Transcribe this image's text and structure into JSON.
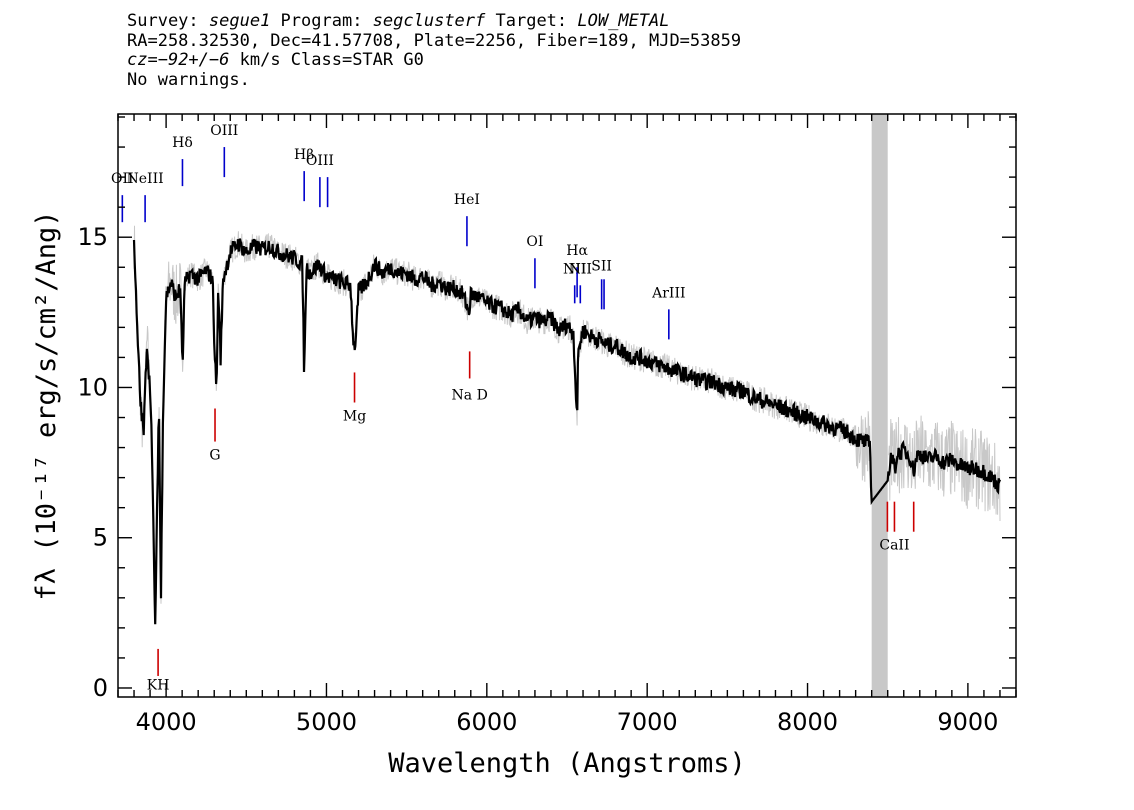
{
  "header": {
    "survey_label": "Survey: ",
    "survey": "segue1",
    "program_label": " Program: ",
    "program": "segclusterf",
    "target_label": " Target: ",
    "target": "LOW_METAL",
    "line2": "RA=258.32530, Dec=41.57708, Plate=2256, Fiber=189, MJD=53859",
    "cz_label": "cz",
    "cz_value": "=−92+/−6",
    "cz_rest": " km/s Class=STAR G0",
    "line4": "No warnings."
  },
  "chart_data": {
    "type": "line",
    "xlabel": "Wavelength (Angstroms)",
    "ylabel": "fλ (10⁻¹⁷ erg/s/cm²/Ang)",
    "xlim": [
      3700,
      9300
    ],
    "ylim": [
      -0.3,
      19.1
    ],
    "xticks": [
      4000,
      5000,
      6000,
      7000,
      8000,
      9000
    ],
    "yticks": [
      0,
      5,
      10,
      15
    ],
    "colors": {
      "flux": "#c8c8c8",
      "model": "#000000",
      "emission": "#0000cc",
      "absorption": "#cc0000",
      "masked": "#c8c8c8"
    },
    "masked_region": [
      8400,
      8500
    ],
    "series": [
      {
        "role": "model",
        "points": [
          [
            3800,
            15
          ],
          [
            3815,
            12.5
          ],
          [
            3840,
            9.5
          ],
          [
            3860,
            8.5
          ],
          [
            3880,
            11.5
          ],
          [
            3905,
            9.5
          ],
          [
            3920,
            5.5
          ],
          [
            3933,
            1.8
          ],
          [
            3945,
            6.5
          ],
          [
            3955,
            9.5
          ],
          [
            3968,
            3
          ],
          [
            3980,
            9
          ],
          [
            4000,
            13
          ],
          [
            4030,
            13.5
          ],
          [
            4060,
            13
          ],
          [
            4090,
            13.3
          ],
          [
            4102,
            10.5
          ],
          [
            4115,
            13.4
          ],
          [
            4150,
            13.8
          ],
          [
            4200,
            13.6
          ],
          [
            4250,
            13.9
          ],
          [
            4290,
            13.6
          ],
          [
            4305,
            10.8
          ],
          [
            4315,
            10
          ],
          [
            4325,
            13.4
          ],
          [
            4340,
            11
          ],
          [
            4355,
            13.6
          ],
          [
            4400,
            14.5
          ],
          [
            4450,
            14.8
          ],
          [
            4500,
            14.5
          ],
          [
            4550,
            14.7
          ],
          [
            4600,
            14.6
          ],
          [
            4650,
            14.7
          ],
          [
            4700,
            14.5
          ],
          [
            4750,
            14.4
          ],
          [
            4800,
            14.3
          ],
          [
            4850,
            14.1
          ],
          [
            4861,
            10.4
          ],
          [
            4875,
            14
          ],
          [
            4900,
            13.8
          ],
          [
            4950,
            14.1
          ],
          [
            5000,
            13.7
          ],
          [
            5050,
            13.6
          ],
          [
            5100,
            13.5
          ],
          [
            5150,
            13.4
          ],
          [
            5167,
            11.6
          ],
          [
            5175,
            11.3
          ],
          [
            5185,
            11.8
          ],
          [
            5200,
            13.2
          ],
          [
            5250,
            13.5
          ],
          [
            5300,
            14.1
          ],
          [
            5350,
            13.8
          ],
          [
            5400,
            14
          ],
          [
            5450,
            13.8
          ],
          [
            5500,
            13.8
          ],
          [
            5550,
            13.6
          ],
          [
            5600,
            13.7
          ],
          [
            5650,
            13.4
          ],
          [
            5700,
            13.5
          ],
          [
            5750,
            13.3
          ],
          [
            5800,
            13.3
          ],
          [
            5850,
            13.1
          ],
          [
            5890,
            12.5
          ],
          [
            5900,
            13.1
          ],
          [
            5950,
            13
          ],
          [
            6000,
            12.8
          ],
          [
            6050,
            12.7
          ],
          [
            6100,
            12.6
          ],
          [
            6150,
            12.4
          ],
          [
            6200,
            12.6
          ],
          [
            6250,
            12.2
          ],
          [
            6300,
            12.3
          ],
          [
            6350,
            12.2
          ],
          [
            6400,
            12.3
          ],
          [
            6450,
            11.9
          ],
          [
            6500,
            12.1
          ],
          [
            6540,
            11.8
          ],
          [
            6556,
            9.8
          ],
          [
            6563,
            9
          ],
          [
            6570,
            11.2
          ],
          [
            6600,
            11.9
          ],
          [
            6650,
            11.7
          ],
          [
            6700,
            11.6
          ],
          [
            6750,
            11.4
          ],
          [
            6800,
            11.4
          ],
          [
            6850,
            11.2
          ],
          [
            6900,
            11
          ],
          [
            6950,
            11
          ],
          [
            7000,
            10.9
          ],
          [
            7050,
            10.8
          ],
          [
            7100,
            10.7
          ],
          [
            7150,
            10.6
          ],
          [
            7200,
            10.5
          ],
          [
            7250,
            10.4
          ],
          [
            7300,
            10.3
          ],
          [
            7350,
            10.2
          ],
          [
            7400,
            10.2
          ],
          [
            7450,
            10.1
          ],
          [
            7500,
            10
          ],
          [
            7550,
            9.9
          ],
          [
            7600,
            9.9
          ],
          [
            7650,
            9.7
          ],
          [
            7700,
            9.6
          ],
          [
            7750,
            9.5
          ],
          [
            7800,
            9.4
          ],
          [
            7850,
            9.3
          ],
          [
            7900,
            9.2
          ],
          [
            7950,
            9.1
          ],
          [
            8000,
            9
          ],
          [
            8050,
            8.9
          ],
          [
            8100,
            8.8
          ],
          [
            8150,
            8.7
          ],
          [
            8200,
            8.6
          ],
          [
            8250,
            8.5
          ],
          [
            8300,
            8.3
          ],
          [
            8350,
            8.2
          ],
          [
            8390,
            8.1
          ],
          [
            8400,
            6.2
          ],
          [
            8500,
            6.9
          ],
          [
            8520,
            7.7
          ],
          [
            8545,
            7.3
          ],
          [
            8560,
            7.8
          ],
          [
            8600,
            7.9
          ],
          [
            8640,
            7.7
          ],
          [
            8662,
            7.2
          ],
          [
            8680,
            7.7
          ],
          [
            8700,
            7.8
          ],
          [
            8750,
            7.6
          ],
          [
            8800,
            7.7
          ],
          [
            8850,
            7.5
          ],
          [
            8900,
            7.6
          ],
          [
            8950,
            7.4
          ],
          [
            9000,
            7.3
          ],
          [
            9050,
            7.3
          ],
          [
            9100,
            7.2
          ],
          [
            9150,
            7
          ],
          [
            9200,
            6.7
          ]
        ]
      }
    ],
    "lines": [
      {
        "label": "KH",
        "wave": 3950,
        "kind": "absorption",
        "label_pos": "below",
        "y1": 1.3,
        "y2": 0.4,
        "label_y": -0.05
      },
      {
        "label": "G",
        "wave": 4305,
        "kind": "absorption",
        "label_pos": "below",
        "y1": 9.3,
        "y2": 8.2,
        "label_y": 7.6
      },
      {
        "label": "Mg",
        "wave": 5175,
        "kind": "absorption",
        "label_pos": "below",
        "y1": 10.5,
        "y2": 9.5,
        "label_y": 8.9
      },
      {
        "label": "Na D",
        "wave": 5893,
        "kind": "absorption",
        "label_pos": "below",
        "y1": 11.2,
        "y2": 10.3,
        "label_y": 9.6
      },
      {
        "label": "CaII",
        "wave": 8542,
        "kind": "absorption",
        "label_pos": "below",
        "y1": 6.2,
        "y2": 5.2,
        "label_y": 4.6
      },
      {
        "label": "",
        "wave": 8498,
        "kind": "absorption",
        "label_pos": "below",
        "y1": 6.2,
        "y2": 5.2,
        "label_y": 4.6
      },
      {
        "label": "",
        "wave": 8662,
        "kind": "absorption",
        "label_pos": "below",
        "y1": 6.2,
        "y2": 5.2,
        "label_y": 4.6
      },
      {
        "label": "OII",
        "wave": 3727,
        "kind": "emission",
        "label_pos": "above",
        "y1": 15.5,
        "y2": 16.4,
        "label_y": 16.8
      },
      {
        "label": "NeIII",
        "wave": 3869,
        "kind": "emission",
        "label_pos": "above",
        "y1": 15.5,
        "y2": 16.4,
        "label_y": 16.8
      },
      {
        "label": "Hδ",
        "wave": 4102,
        "kind": "emission",
        "label_pos": "above",
        "y1": 16.7,
        "y2": 17.6,
        "label_y": 18
      },
      {
        "label": "OIII",
        "wave": 4363,
        "kind": "emission",
        "label_pos": "above",
        "y1": 17,
        "y2": 18,
        "label_y": 18.4
      },
      {
        "label": "Hβ",
        "wave": 4861,
        "kind": "emission",
        "label_pos": "above",
        "y1": 16.2,
        "y2": 17.2,
        "label_y": 17.6
      },
      {
        "label": "OIII",
        "wave": 4959,
        "kind": "emission",
        "label_pos": "above",
        "y1": 16,
        "y2": 17,
        "label_y": 17.4
      },
      {
        "label": "",
        "wave": 5007,
        "kind": "emission",
        "label_pos": "above",
        "y1": 16,
        "y2": 17,
        "label_y": 17.4
      },
      {
        "label": "HeI",
        "wave": 5876,
        "kind": "emission",
        "label_pos": "above",
        "y1": 14.7,
        "y2": 15.7,
        "label_y": 16.1
      },
      {
        "label": "OI",
        "wave": 6300,
        "kind": "emission",
        "label_pos": "above",
        "y1": 13.3,
        "y2": 14.3,
        "label_y": 14.7
      },
      {
        "label": "NII",
        "wave": 6548,
        "kind": "emission",
        "label_pos": "above",
        "y1": 12.8,
        "y2": 13.4,
        "label_y": 13.8
      },
      {
        "label": "Hα",
        "wave": 6563,
        "kind": "emission",
        "label_pos": "above",
        "y1": 13,
        "y2": 14,
        "label_y": 14.4
      },
      {
        "label": "NII",
        "wave": 6583,
        "kind": "emission",
        "label_pos": "above",
        "y1": 12.8,
        "y2": 13.4,
        "label_y": 13.8
      },
      {
        "label": "SII",
        "wave": 6716,
        "kind": "emission",
        "label_pos": "above",
        "y1": 12.6,
        "y2": 13.6,
        "label_y": 13.9
      },
      {
        "label": "",
        "wave": 6731,
        "kind": "emission",
        "label_pos": "above",
        "y1": 12.6,
        "y2": 13.6,
        "label_y": 13.9
      },
      {
        "label": "ArIII",
        "wave": 7135,
        "kind": "emission",
        "label_pos": "above",
        "y1": 11.6,
        "y2": 12.6,
        "label_y": 13
      }
    ]
  }
}
